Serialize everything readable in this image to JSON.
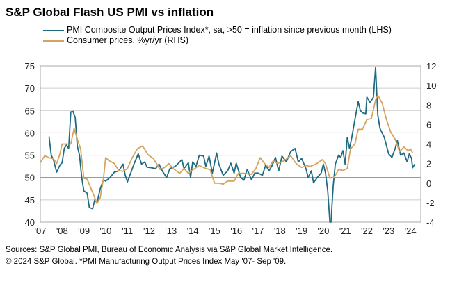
{
  "chart_data": {
    "type": "line",
    "title": "S&P Global Flash US PMI vs inflation",
    "x_tick_labels": [
      "'07",
      "'08",
      "'09",
      "'10",
      "'11",
      "'12",
      "'13",
      "'14",
      "'15",
      "'16",
      "'17",
      "'18",
      "'19",
      "'20",
      "'21",
      "'22",
      "'23",
      "'24"
    ],
    "y_left": {
      "range": [
        40,
        75
      ],
      "ticks": [
        40,
        45,
        50,
        55,
        60,
        65,
        70,
        75
      ]
    },
    "y_right": {
      "range": [
        -4,
        12
      ],
      "ticks": [
        -4,
        -2,
        0,
        2,
        4,
        6,
        8,
        10,
        12
      ]
    },
    "grid": true,
    "legend_placement": "top",
    "series": [
      {
        "name": "PMI Composite Output Prices Index*, sa, >50 = inflation since previous month (LHS)",
        "axis": "left",
        "color": "#1f6b82",
        "x": [
          2007.4,
          2007.5,
          2007.6,
          2007.75,
          2007.9,
          2008.0,
          2008.1,
          2008.2,
          2008.3,
          2008.4,
          2008.5,
          2008.6,
          2008.7,
          2008.8,
          2008.9,
          2009.0,
          2009.15,
          2009.25,
          2009.4,
          2009.5,
          2009.6,
          2009.75,
          2009.9,
          2010.0,
          2010.2,
          2010.4,
          2010.6,
          2010.8,
          2010.9,
          2011.0,
          2011.15,
          2011.3,
          2011.5,
          2011.65,
          2011.8,
          2011.9,
          2012.1,
          2012.3,
          2012.45,
          2012.6,
          2012.8,
          2012.95,
          2013.2,
          2013.4,
          2013.5,
          2013.6,
          2013.8,
          2013.9,
          2014.0,
          2014.15,
          2014.3,
          2014.5,
          2014.6,
          2014.75,
          2014.9,
          2015.1,
          2015.2,
          2015.4,
          2015.6,
          2015.75,
          2015.9,
          2016.0,
          2016.2,
          2016.35,
          2016.5,
          2016.7,
          2016.85,
          2017.0,
          2017.2,
          2017.35,
          2017.5,
          2017.65,
          2017.8,
          2017.95,
          2018.1,
          2018.3,
          2018.5,
          2018.7,
          2018.85,
          2019.0,
          2019.2,
          2019.3,
          2019.45,
          2019.55,
          2019.75,
          2019.9,
          2020.0,
          2020.1,
          2020.2,
          2020.3,
          2020.35,
          2020.45,
          2020.55,
          2020.7,
          2020.8,
          2020.9,
          2021.0,
          2021.1,
          2021.2,
          2021.3,
          2021.45,
          2021.6,
          2021.7,
          2021.8,
          2021.95,
          2022.0,
          2022.15,
          2022.3,
          2022.4,
          2022.5,
          2022.6,
          2022.8,
          2023.0,
          2023.15,
          2023.3,
          2023.4,
          2023.55,
          2023.7,
          2023.85,
          2023.95,
          2024.05,
          2024.1,
          2024.2
        ],
        "y": [
          59.2,
          55,
          54,
          51.2,
          52.8,
          53.3,
          56.5,
          57.3,
          56.5,
          64.7,
          64.8,
          63.5,
          57,
          55,
          50,
          47,
          46.5,
          43.3,
          43,
          45,
          44.3,
          47.5,
          49.5,
          49.2,
          50,
          51.2,
          51.5,
          53,
          50.5,
          49,
          51,
          53,
          55.3,
          53,
          53.5,
          52.3,
          52.2,
          52,
          53,
          51.5,
          50,
          52,
          52.5,
          53.5,
          54,
          52,
          53.3,
          50,
          53.5,
          52.5,
          55,
          54.8,
          52.5,
          54.8,
          51,
          55.5,
          53,
          50.5,
          51.5,
          53.2,
          51,
          53.2,
          50,
          49.4,
          51.8,
          49.5,
          51,
          51,
          50.5,
          52.8,
          51.5,
          52.7,
          54.5,
          51.5,
          54.8,
          53.5,
          55.8,
          56.5,
          53.5,
          54.3,
          52,
          50,
          51.5,
          48.8,
          50.2,
          51,
          53,
          51,
          47,
          40,
          40,
          48,
          53,
          55,
          54.5,
          56,
          53,
          59,
          56.5,
          58.8,
          63,
          67,
          65,
          64.5,
          64.3,
          68,
          66.8,
          68,
          74.7,
          64,
          61,
          59,
          55.3,
          54.5,
          56.5,
          58.3,
          55,
          55.5,
          53.5,
          55.3,
          54.3,
          52.2,
          53
        ]
      },
      {
        "name": "Consumer prices, %yr/yr (RHS)",
        "axis": "right",
        "color": "#d4a45f",
        "x": [
          2007.0,
          2007.2,
          2007.4,
          2007.6,
          2007.75,
          2007.9,
          2008.0,
          2008.2,
          2008.4,
          2008.55,
          2008.7,
          2008.85,
          2009.0,
          2009.15,
          2009.3,
          2009.5,
          2009.6,
          2009.75,
          2009.9,
          2010.0,
          2010.15,
          2010.4,
          2010.6,
          2010.8,
          2011.0,
          2011.2,
          2011.45,
          2011.7,
          2011.95,
          2012.2,
          2012.5,
          2012.7,
          2012.9,
          2013.1,
          2013.4,
          2013.6,
          2013.8,
          2014.1,
          2014.3,
          2014.6,
          2014.8,
          2015.0,
          2015.2,
          2015.4,
          2015.6,
          2015.9,
          2016.1,
          2016.4,
          2016.7,
          2016.9,
          2017.1,
          2017.3,
          2017.5,
          2017.7,
          2017.9,
          2018.2,
          2018.5,
          2018.75,
          2019.0,
          2019.2,
          2019.4,
          2019.7,
          2019.95,
          2020.1,
          2020.3,
          2020.5,
          2020.7,
          2020.9,
          2021.1,
          2021.25,
          2021.45,
          2021.6,
          2021.8,
          2022.0,
          2022.2,
          2022.4,
          2022.5,
          2022.7,
          2022.9,
          2023.1,
          2023.3,
          2023.5,
          2023.7,
          2023.9,
          2024.0,
          2024.1
        ],
        "y": [
          2.1,
          2.8,
          2.6,
          2.5,
          2.0,
          3.0,
          4.0,
          4.0,
          4.0,
          5.6,
          4.5,
          3.5,
          0.5,
          0.4,
          -0.4,
          -1.5,
          -2.1,
          -1.5,
          0.5,
          2.6,
          2.3,
          2.0,
          1.3,
          1.2,
          1.5,
          2.5,
          3.5,
          3.8,
          2.9,
          2.5,
          1.4,
          1.6,
          2.0,
          1.5,
          1.0,
          1.5,
          1.0,
          1.5,
          1.8,
          1.5,
          1.4,
          0.0,
          0.0,
          -0.1,
          0.2,
          0.2,
          1.0,
          1.0,
          0.9,
          1.5,
          2.6,
          2.0,
          1.6,
          2.3,
          2.0,
          2.3,
          2.8,
          2.0,
          1.6,
          1.8,
          1.7,
          2.0,
          2.4,
          2.0,
          0.5,
          0.6,
          1.4,
          1.3,
          1.5,
          3.5,
          4.0,
          5.5,
          5.5,
          6.5,
          6.6,
          8.5,
          9.0,
          8.2,
          6.5,
          5.2,
          4.5,
          3.2,
          3.7,
          3.3,
          3.5,
          3.1
        ]
      }
    ]
  },
  "footer": {
    "sources": "Sources: S&P Global PMI, Bureau of Economic Analysis via S&P Global Market Intelligence.",
    "copyright": "© 2024 S&P Global. *PMI Manufacturing Output Prices Index May '07- Sep '09."
  }
}
